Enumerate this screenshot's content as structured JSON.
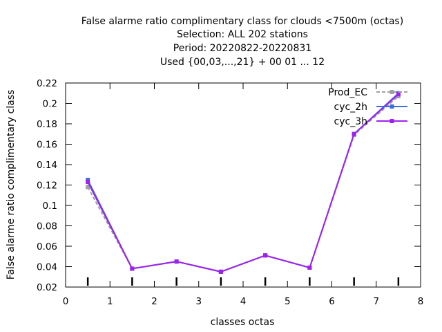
{
  "title_lines": [
    "False alarme ratio complimentary class  for clouds <7500m (octas)",
    "Selection: ALL    202 stations",
    "Period: 20220822-20220831",
    "Used {00,03,...,21} + 00 01 ... 12"
  ],
  "chart_data": {
    "type": "line",
    "xlabel": "classes octas",
    "ylabel": "False alarme ratio complimentary class",
    "xlim": [
      0,
      8
    ],
    "ylim": [
      0.02,
      0.22
    ],
    "xticks": [
      0,
      1,
      2,
      3,
      4,
      5,
      6,
      7,
      8
    ],
    "yticks": [
      0.02,
      0.04,
      0.06,
      0.08,
      0.1,
      0.12,
      0.14,
      0.16,
      0.18,
      0.2,
      0.22
    ],
    "xtick_labels": [
      "0",
      "1",
      "2",
      "3",
      "4",
      "5",
      "6",
      "7",
      "8"
    ],
    "ytick_labels": [
      "0.02",
      "0.04",
      "0.06",
      "0.08",
      "0.1",
      "0.12",
      "0.14",
      "0.16",
      "0.18",
      "0.2",
      "0.22"
    ],
    "x": [
      0.5,
      1.5,
      2.5,
      3.5,
      4.5,
      5.5,
      6.5,
      7.5
    ],
    "grid": false,
    "legend_position": "top-right",
    "series": [
      {
        "name": "Prod_EC",
        "values": [
          0.118,
          0.038,
          0.045,
          0.035,
          0.051,
          0.039,
          0.169,
          0.207
        ],
        "color": "#a0a0a0",
        "dashed": true
      },
      {
        "name": "cyc_2h",
        "values": [
          0.125,
          0.038,
          0.045,
          0.035,
          0.051,
          0.039,
          0.17,
          0.21
        ],
        "color": "#3a6fd8",
        "dashed": false
      },
      {
        "name": "cyc_3h",
        "values": [
          0.123,
          0.038,
          0.045,
          0.035,
          0.051,
          0.039,
          0.17,
          0.209
        ],
        "color": "#a020f0",
        "dashed": false
      }
    ]
  }
}
